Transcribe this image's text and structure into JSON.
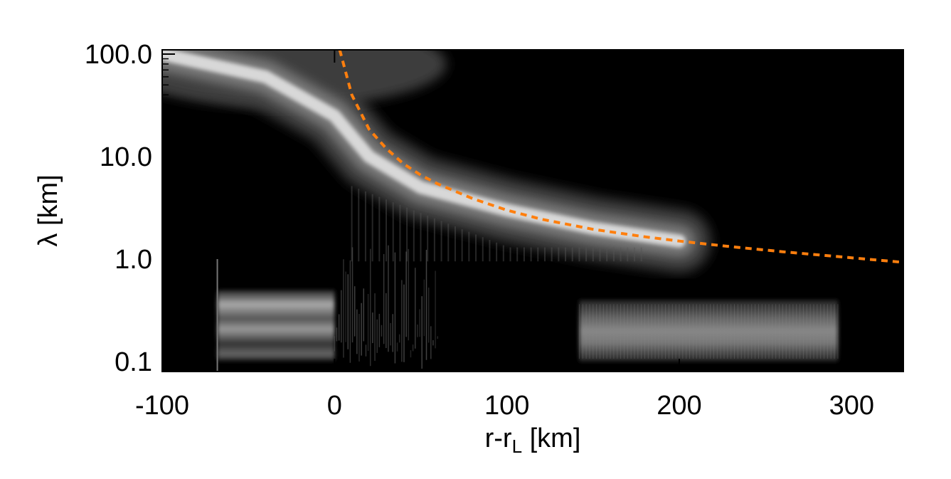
{
  "chart_data": {
    "type": "heatmap",
    "title": "",
    "xlabel_main": "r-r",
    "xlabel_sub": "L",
    "xlabel_unit": " [km]",
    "ylabel": "λ [km]",
    "x_scale": "linear",
    "y_scale": "log",
    "xlim": [
      -100,
      330
    ],
    "ylim": [
      0.08,
      110
    ],
    "x_ticks": [
      -100,
      0,
      100,
      200,
      300
    ],
    "x_tick_labels": [
      "-100",
      "0",
      "100",
      "200",
      "300"
    ],
    "y_ticks": [
      0.1,
      1.0,
      10.0,
      100.0
    ],
    "y_tick_labels": [
      "0.1",
      "1.0",
      "10.0",
      "100.0"
    ],
    "colormap": "grayscale (black = low power, white = high power)",
    "background_color": "#000000",
    "grid": false,
    "legend": "none",
    "features": [
      {
        "name": "main wave power ridge",
        "points": [
          {
            "x": -100,
            "y": 100
          },
          {
            "x": -40,
            "y": 60
          },
          {
            "x": 0,
            "y": 25
          },
          {
            "x": 20,
            "y": 10
          },
          {
            "x": 50,
            "y": 5
          },
          {
            "x": 100,
            "y": 3
          },
          {
            "x": 150,
            "y": 2
          },
          {
            "x": 200,
            "y": 1.5
          }
        ]
      },
      {
        "name": "high-frequency band (left)",
        "x_range": [
          -68,
          0
        ],
        "y_range": [
          0.1,
          0.5
        ]
      },
      {
        "name": "noise region",
        "x_range": [
          0,
          60
        ],
        "y_range": [
          0.08,
          2
        ]
      },
      {
        "name": "high-frequency band (right)",
        "x_range": [
          142,
          292
        ],
        "y_range": [
          0.1,
          0.4
        ]
      }
    ],
    "series": [
      {
        "type": "dashed-line",
        "color": "#ff7f0e",
        "x": [
          3,
          10,
          20,
          30,
          40,
          50,
          60,
          80,
          100,
          120,
          150,
          180,
          200,
          230,
          260,
          300,
          330
        ],
        "y": [
          110,
          40,
          18.5,
          12,
          8.5,
          6.6,
          5.4,
          3.9,
          3.0,
          2.45,
          1.95,
          1.65,
          1.5,
          1.32,
          1.18,
          1.03,
          0.93
        ]
      }
    ]
  }
}
